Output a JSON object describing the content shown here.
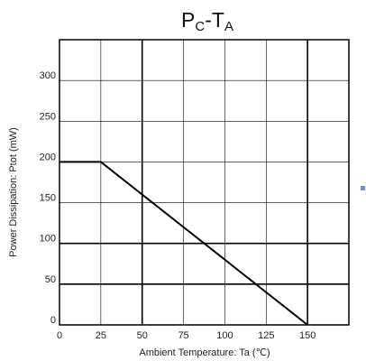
{
  "chart_data": {
    "type": "line",
    "title": {
      "main_prefix": "P",
      "sub_prefix": "C",
      "separator": "-T",
      "sub_suffix": "A"
    },
    "xlabel": "Ambient Temperature: Ta (℃)",
    "ylabel": "Power Dissipation: Ptot (mW)",
    "xlim": [
      0,
      175
    ],
    "ylim": [
      0,
      350
    ],
    "x_ticks": [
      "0",
      "25",
      "50",
      "75",
      "100",
      "125",
      "150"
    ],
    "y_ticks": [
      "0",
      "50",
      "100",
      "150",
      "200",
      "250",
      "300"
    ],
    "x_grid": [
      25,
      50,
      75,
      100,
      125,
      150
    ],
    "x_grid_major": [
      50,
      150
    ],
    "y_grid": [
      50,
      100,
      150,
      200,
      250,
      300
    ],
    "y_grid_major": [
      50,
      100
    ],
    "grid": true,
    "series": [
      {
        "x": [
          0,
          25,
          150
        ],
        "y": [
          200,
          200,
          0
        ]
      }
    ],
    "colors": {
      "line": "#000000",
      "grid": "#000000",
      "marker": "#6b8fd6"
    }
  }
}
